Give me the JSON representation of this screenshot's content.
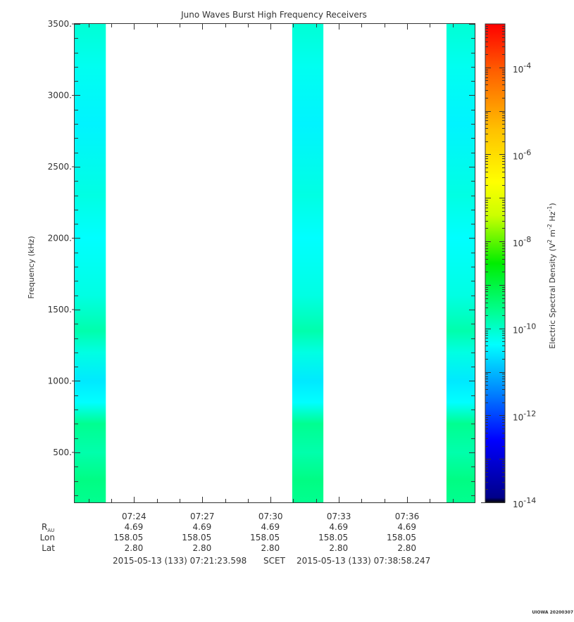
{
  "chart_data": {
    "type": "heatmap",
    "title": "Juno Waves Burst High Frequency Receivers",
    "ylabel": "Frequency (kHz)",
    "ylim": [
      150,
      3500
    ],
    "y_ticks": [
      {
        "value": 3500,
        "label": "3500."
      },
      {
        "value": 3000,
        "label": "3000."
      },
      {
        "value": 2500,
        "label": "2500."
      },
      {
        "value": 2000,
        "label": "2000."
      },
      {
        "value": 1500,
        "label": "1500."
      },
      {
        "value": 1000,
        "label": "1000."
      },
      {
        "value": 500,
        "label": "500."
      }
    ],
    "x_range_minutes": [
      0,
      17.58
    ],
    "x_ticks": [
      {
        "minutes": 2.61,
        "label": "07:24"
      },
      {
        "minutes": 5.61,
        "label": "07:27"
      },
      {
        "minutes": 8.61,
        "label": "07:30"
      },
      {
        "minutes": 11.61,
        "label": "07:33"
      },
      {
        "minutes": 14.61,
        "label": "07:36"
      }
    ],
    "data_blocks": [
      {
        "start": 0.0,
        "end": 1.37
      },
      {
        "start": 9.56,
        "end": 10.93
      },
      {
        "start": 16.34,
        "end": 17.58
      }
    ],
    "frequency_profile": [
      {
        "f": 150,
        "log_e": -9.6
      },
      {
        "f": 300,
        "log_e": -9.5
      },
      {
        "f": 500,
        "log_e": -9.8
      },
      {
        "f": 700,
        "log_e": -9.6
      },
      {
        "f": 850,
        "log_e": -10.4
      },
      {
        "f": 1000,
        "log_e": -10.6
      },
      {
        "f": 1200,
        "log_e": -10.2
      },
      {
        "f": 1350,
        "log_e": -9.8
      },
      {
        "f": 1600,
        "log_e": -10.2
      },
      {
        "f": 2000,
        "log_e": -10.4
      },
      {
        "f": 2300,
        "log_e": -10.2
      },
      {
        "f": 2800,
        "log_e": -10.5
      },
      {
        "f": 3200,
        "log_e": -10.3
      },
      {
        "f": 3500,
        "log_e": -10.1
      }
    ],
    "colorbar": {
      "label_prefix": "Electric Spectral Density (V",
      "label_sup1": "2",
      "label_mid": " m",
      "label_sup2": "-2",
      "label_mid2": " Hz",
      "label_sup3": "-1",
      "label_suffix": ")",
      "log_range": [
        -14,
        -3
      ],
      "ticks": [
        {
          "exp": -4,
          "base": "10",
          "sup": "-4"
        },
        {
          "exp": -6,
          "base": "10",
          "sup": "-6"
        },
        {
          "exp": -8,
          "base": "10",
          "sup": "-8"
        },
        {
          "exp": -10,
          "base": "10",
          "sup": "-10"
        },
        {
          "exp": -12,
          "base": "10",
          "sup": "-12"
        },
        {
          "exp": -14,
          "base": "10",
          "sup": "-14"
        }
      ]
    },
    "ephemeris": {
      "rows": [
        {
          "label": "R",
          "sub": "AU",
          "values": [
            "4.69",
            "4.69",
            "4.69",
            "4.69",
            "4.69"
          ]
        },
        {
          "label": "Lon",
          "sub": "",
          "values": [
            "158.05",
            "158.05",
            "158.05",
            "158.05",
            "158.05"
          ]
        },
        {
          "label": "Lat",
          "sub": "",
          "values": [
            "2.80",
            "2.80",
            "2.80",
            "2.80",
            "2.80"
          ]
        }
      ]
    },
    "time_range": {
      "start": "2015-05-13 (133) 07:21:23.598",
      "mid": "SCET",
      "end": "2015-05-13 (133) 07:38:58.247"
    },
    "stamp": "UIOWA 20200307"
  }
}
